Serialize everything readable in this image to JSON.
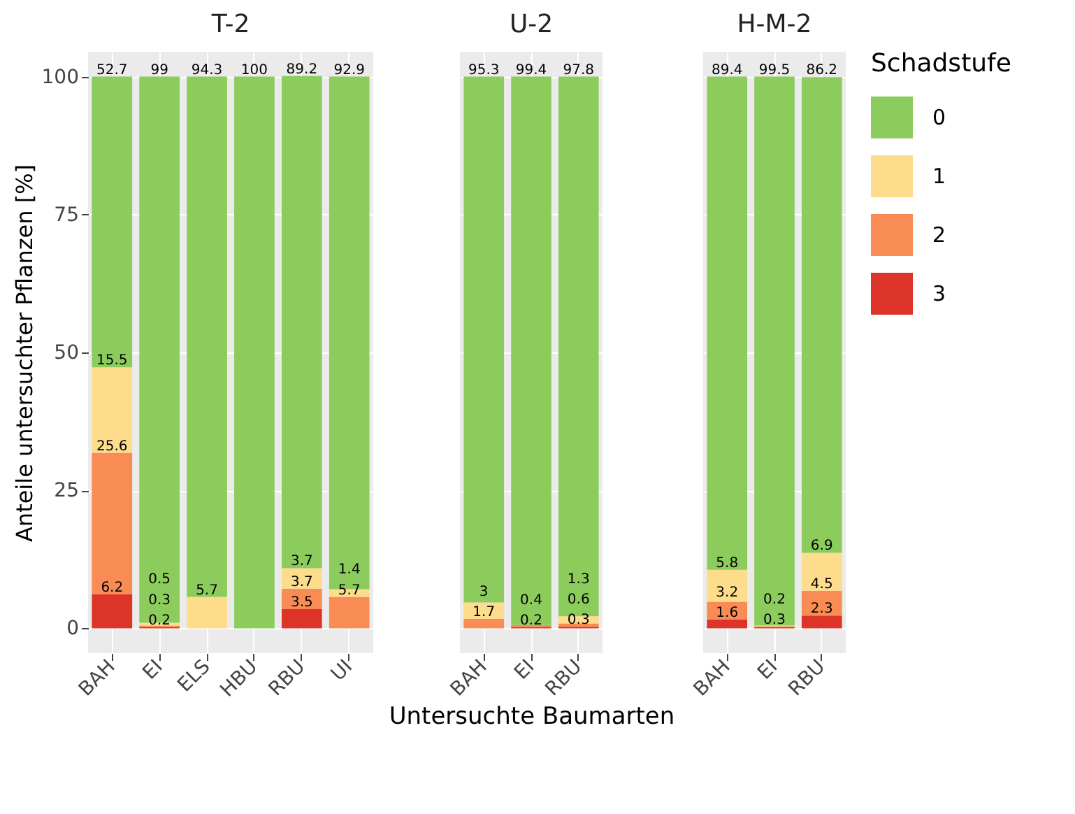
{
  "chart_data": [
    {
      "type": "bar",
      "stacked": true,
      "title": "T-2",
      "legend_title": "Schadstufe",
      "legend": "right",
      "ylabel": "Anteile untersuchter Pflanzen [%]",
      "categories": [
        "BAH",
        "EI",
        "ELS",
        "HBU",
        "RBU",
        "UI"
      ],
      "ylim": [
        -4.5,
        104.5
      ],
      "yticks": [
        0,
        25,
        50,
        75,
        100
      ],
      "grid": true,
      "data_labels": true,
      "series": [
        {
          "name": "3",
          "color": "#dc3428",
          "values": [
            6.2,
            0.2,
            null,
            null,
            3.5,
            null
          ]
        },
        {
          "name": "2",
          "color": "#f88c54",
          "values": [
            25.6,
            0.3,
            null,
            null,
            3.7,
            5.7
          ]
        },
        {
          "name": "1",
          "color": "#fddc8c",
          "values": [
            15.5,
            0.5,
            5.7,
            null,
            3.7,
            1.4
          ]
        },
        {
          "name": "0",
          "color": "#8ccc5c",
          "values": [
            52.7,
            99,
            94.3,
            100,
            89.2,
            92.9
          ]
        }
      ]
    },
    {
      "type": "bar",
      "stacked": true,
      "title": "U-2",
      "legend": "right",
      "xlabel": "Untersuchte Baumarten",
      "categories": [
        "BAH",
        "EI",
        "RBU"
      ],
      "ylim": [
        -4.5,
        104.5
      ],
      "yticks": [
        0,
        25,
        50,
        75,
        100
      ],
      "grid": true,
      "data_labels": true,
      "tick_labels": "x",
      "series": [
        {
          "name": "3",
          "color": "#dc3428",
          "values": [
            null,
            0.2,
            0.3
          ]
        },
        {
          "name": "2",
          "color": "#f88c54",
          "values": [
            1.7,
            0.4,
            0.6
          ]
        },
        {
          "name": "1",
          "color": "#fddc8c",
          "values": [
            3,
            null,
            1.3
          ]
        },
        {
          "name": "0",
          "color": "#8ccc5c",
          "values": [
            95.3,
            99.4,
            97.8
          ]
        }
      ]
    },
    {
      "type": "bar",
      "stacked": true,
      "title": "H-M-2",
      "legend": "right",
      "categories": [
        "BAH",
        "EI",
        "RBU"
      ],
      "ylim": [
        -4.5,
        104.5
      ],
      "yticks": [
        0,
        25,
        50,
        75,
        100
      ],
      "grid": true,
      "data_labels": true,
      "tick_labels": "x",
      "series": [
        {
          "name": "3",
          "color": "#dc3428",
          "values": [
            1.6,
            0.3,
            2.3
          ]
        },
        {
          "name": "2",
          "color": "#f88c54",
          "values": [
            3.2,
            null,
            4.5
          ]
        },
        {
          "name": "1",
          "color": "#fddc8c",
          "values": [
            5.8,
            0.2,
            6.9
          ]
        },
        {
          "name": "0",
          "color": "#8ccc5c",
          "values": [
            89.4,
            99.5,
            86.2
          ]
        }
      ]
    }
  ]
}
